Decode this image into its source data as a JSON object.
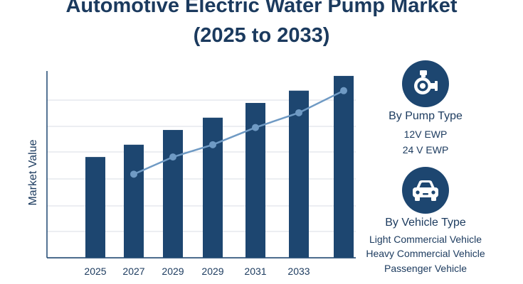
{
  "title": {
    "line1": "Automotive Electric Water Pump Market",
    "line2": "(2025 to 2033)"
  },
  "chart_data": {
    "type": "bar",
    "title": "Automotive Electric Water Pump Market (2025 to 2033)",
    "xlabel": "",
    "ylabel": "Market Value",
    "categories": [
      "2025",
      "2027",
      "2029",
      "2029",
      "2031",
      "2033",
      ""
    ],
    "series": [
      {
        "name": "Market Value",
        "type": "bar",
        "values": [
          4.1,
          4.6,
          5.2,
          5.7,
          6.3,
          6.8,
          7.4
        ]
      },
      {
        "name": "Trend",
        "type": "line",
        "values": [
          null,
          3.4,
          4.1,
          4.6,
          5.3,
          5.9,
          6.8
        ]
      }
    ],
    "ylim": [
      0,
      7.6
    ],
    "grid": true,
    "colors": {
      "bar": "#1d4670",
      "line": "#6f9ac4",
      "grid": "#d9dee5",
      "axis": "#1d4670"
    }
  },
  "segments": {
    "pump": {
      "icon": "pump-icon",
      "title": "By Pump Type",
      "items": [
        "12V EWP",
        "24 V EWP"
      ]
    },
    "vehicle": {
      "icon": "car-icon",
      "title": "By Vehicle Type",
      "items": [
        "Light Commercial Vehicle",
        "Heavy Commercial Vehicle",
        "Passenger Vehicle"
      ]
    }
  }
}
